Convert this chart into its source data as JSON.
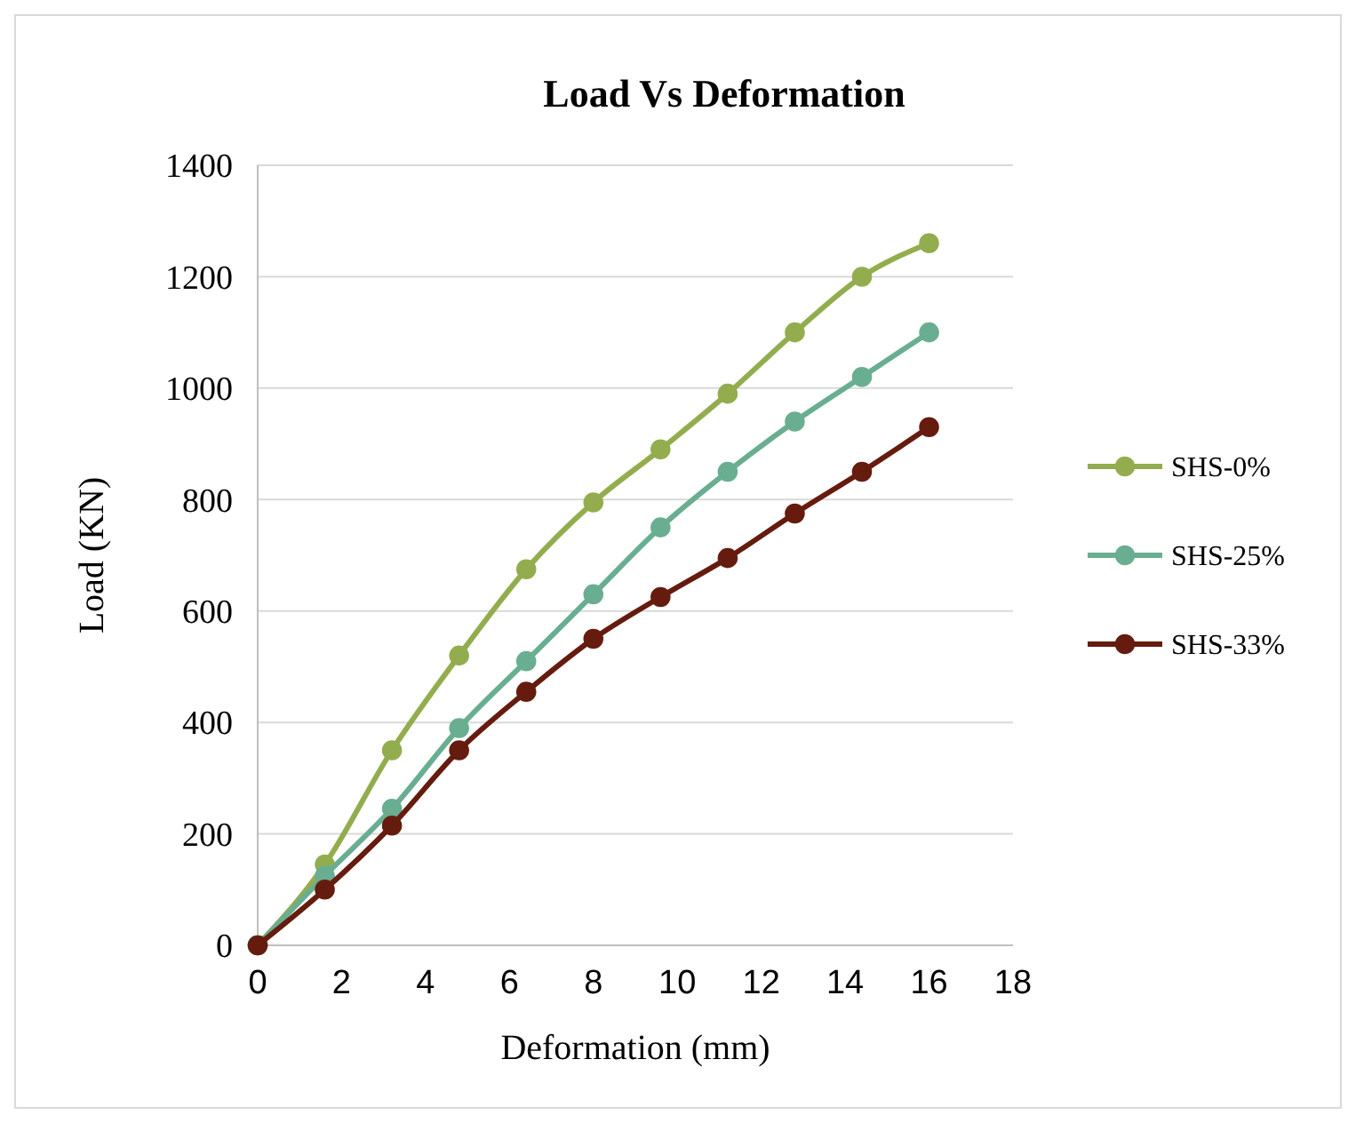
{
  "chart_data": {
    "type": "line",
    "title": "Load Vs Deformation",
    "xlabel": "Deformation (mm)",
    "ylabel": "Load (KN)",
    "x": [
      0,
      1.6,
      3.2,
      4.8,
      6.4,
      8.0,
      9.6,
      11.2,
      12.8,
      14.4,
      16
    ],
    "series": [
      {
        "name": "SHS-0%",
        "color": "#93ad4e",
        "values": [
          0,
          145,
          350,
          520,
          675,
          795,
          890,
          990,
          1100,
          1200,
          1260
        ]
      },
      {
        "name": "SHS-25%",
        "color": "#69ae91",
        "values": [
          0,
          125,
          245,
          390,
          510,
          630,
          750,
          850,
          940,
          1020,
          1100
        ]
      },
      {
        "name": "SHS-33%",
        "color": "#651c0e",
        "values": [
          0,
          100,
          215,
          350,
          455,
          550,
          625,
          695,
          775,
          850,
          930
        ]
      }
    ],
    "xlim": [
      0,
      18
    ],
    "xticks": [
      0,
      2,
      4,
      6,
      8,
      10,
      12,
      14,
      16,
      18
    ],
    "ylim": [
      0,
      1400
    ],
    "yticks": [
      0,
      200,
      400,
      600,
      800,
      1000,
      1200,
      1400
    ],
    "grid": "y",
    "legend": "right",
    "marker": "circle",
    "line_style": "solid"
  }
}
